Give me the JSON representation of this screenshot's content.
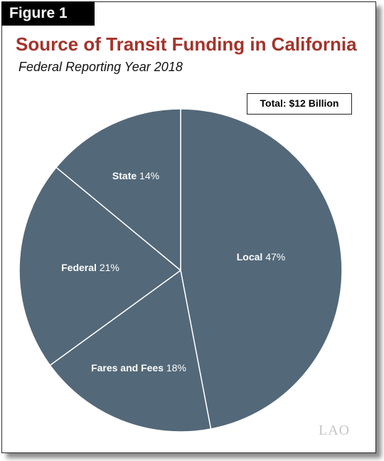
{
  "figure_label": "Figure 1",
  "title": "Source of Transit Funding in California",
  "subtitle": "Federal Reporting Year 2018",
  "total_label": "Total: $12 Billion",
  "logo_text": "LAO",
  "colors": {
    "slice": "#536879",
    "separator": "#ffffff",
    "title": "#a3332a"
  },
  "chart_data": {
    "type": "pie",
    "start": "12 o'clock",
    "direction": "clockwise",
    "slices": [
      {
        "label": "Local",
        "value": 47,
        "display": "47%"
      },
      {
        "label": "Fares and Fees",
        "value": 18,
        "display": "18%"
      },
      {
        "label": "Federal",
        "value": 21,
        "display": "21%"
      },
      {
        "label": "State",
        "value": 14,
        "display": "14%"
      }
    ]
  }
}
